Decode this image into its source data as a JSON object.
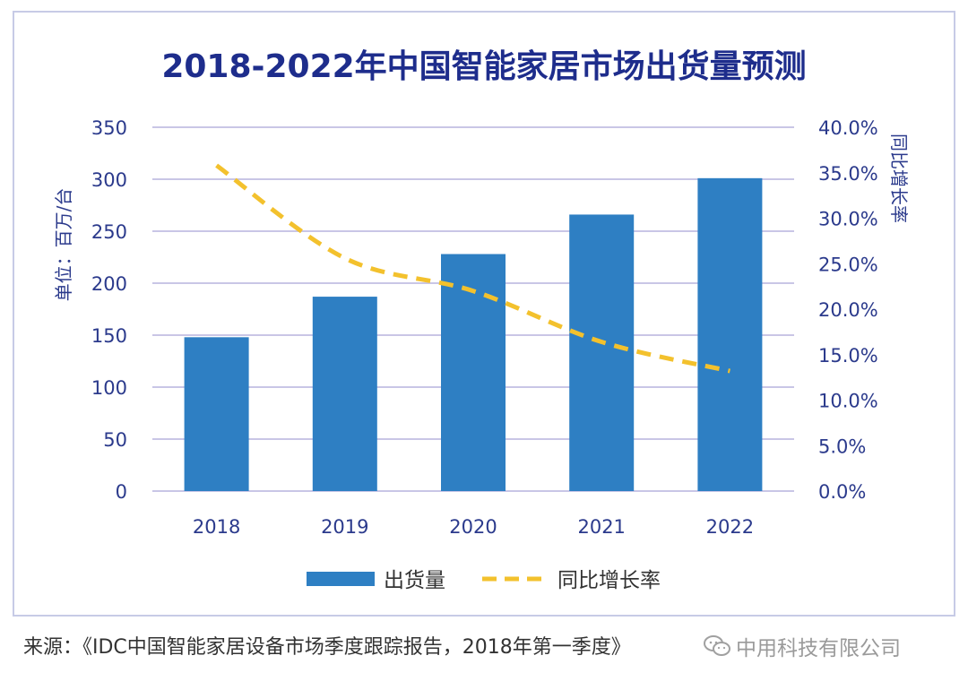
{
  "chart_data": {
    "type": "bar+line",
    "title": "2018-2022年中国智能家居市场出货量预测",
    "categories": [
      "2018",
      "2019",
      "2020",
      "2021",
      "2022"
    ],
    "ylabel_left": "单位：百万/台",
    "ylabel_right": "同比增长率",
    "ylim_left": [
      0,
      350
    ],
    "ylim_right": [
      0,
      40
    ],
    "yticks_left": [
      "0",
      "50",
      "100",
      "150",
      "200",
      "250",
      "300",
      "350"
    ],
    "yticks_right": [
      "0.0%",
      "5.0%",
      "10.0%",
      "15.0%",
      "20.0%",
      "25.0%",
      "30.0%",
      "35.0%",
      "40.0%"
    ],
    "series": [
      {
        "name": "出货量",
        "kind": "bar",
        "axis": "left",
        "values": [
          148,
          187,
          228,
          266,
          301
        ]
      },
      {
        "name": "同比增长率",
        "kind": "line",
        "axis": "right",
        "style": "dashed",
        "values": [
          35.8,
          25.6,
          22.0,
          16.4,
          13.2
        ]
      }
    ],
    "grid": true,
    "legend": "bottom",
    "colors": {
      "bar": "#2e7fc3",
      "line": "#f3c12d",
      "title": "#1e2d8c",
      "axis_text": "#2b3a8c",
      "grid": "#c9c6e6"
    }
  },
  "footer": {
    "source": "来源：《IDC中国智能家居设备市场季度跟踪报告，2018年第一季度》",
    "watermark": "中用科技有限公司",
    "watermark_icon": "wechat-icon"
  }
}
